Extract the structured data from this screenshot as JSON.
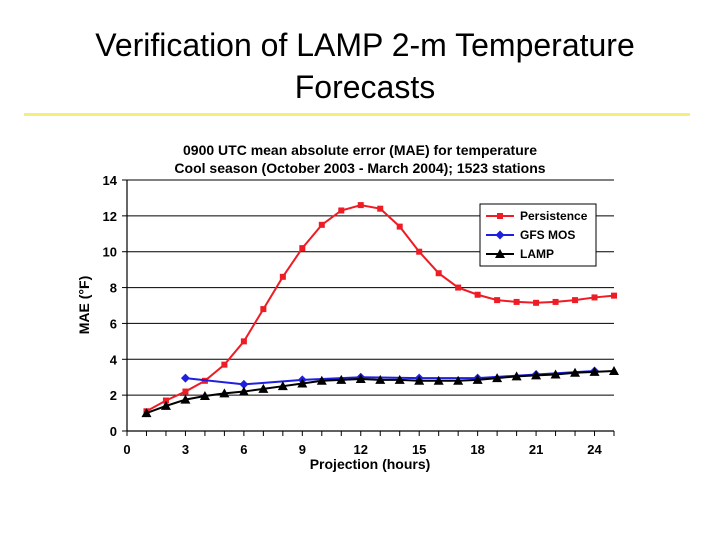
{
  "slide": {
    "title_line1": "Verification of LAMP 2-m Temperature",
    "title_line2": "Forecasts",
    "rule_color": "#f3ef7a"
  },
  "chart_data": {
    "type": "line",
    "title_line1": "0900 UTC mean absolute error (MAE) for temperature",
    "title_line2": "Cool season (October 2003 - March 2004); 1523 stations",
    "xlabel": "Projection (hours)",
    "ylabel": "MAE (°F)",
    "xlim": [
      0,
      25
    ],
    "ylim": [
      0,
      14
    ],
    "xticks": [
      0,
      3,
      6,
      9,
      12,
      15,
      18,
      21,
      24
    ],
    "yticks": [
      0,
      2,
      4,
      6,
      8,
      10,
      12,
      14
    ],
    "grid": "horizontal",
    "legend_position": "top-right",
    "series": [
      {
        "name": "Persistence",
        "color": "#ee1c24",
        "marker": "square",
        "x": [
          1,
          2,
          3,
          4,
          5,
          6,
          7,
          8,
          9,
          10,
          11,
          12,
          13,
          14,
          15,
          16,
          17,
          18,
          19,
          20,
          21,
          22,
          23,
          24,
          25
        ],
        "y": [
          1.1,
          1.7,
          2.2,
          2.8,
          3.7,
          5.0,
          6.8,
          8.6,
          10.2,
          11.5,
          12.3,
          12.6,
          12.4,
          11.4,
          10.0,
          8.8,
          8.0,
          7.6,
          7.3,
          7.2,
          7.15,
          7.2,
          7.3,
          7.45,
          7.55
        ]
      },
      {
        "name": "GFS MOS",
        "color": "#1f1fe0",
        "marker": "diamond",
        "x": [
          3,
          6,
          9,
          12,
          15,
          18,
          21,
          24
        ],
        "y": [
          2.95,
          2.6,
          2.85,
          3.0,
          2.95,
          2.95,
          3.15,
          3.35
        ]
      },
      {
        "name": "LAMP",
        "color": "#000000",
        "marker": "triangle",
        "x": [
          1,
          2,
          3,
          4,
          5,
          6,
          7,
          8,
          9,
          10,
          11,
          12,
          13,
          14,
          15,
          16,
          17,
          18,
          19,
          20,
          21,
          22,
          23,
          24,
          25
        ],
        "y": [
          1.0,
          1.4,
          1.75,
          1.95,
          2.1,
          2.2,
          2.35,
          2.5,
          2.65,
          2.8,
          2.85,
          2.9,
          2.85,
          2.85,
          2.8,
          2.8,
          2.8,
          2.85,
          2.95,
          3.05,
          3.1,
          3.15,
          3.25,
          3.3,
          3.35
        ]
      }
    ]
  }
}
